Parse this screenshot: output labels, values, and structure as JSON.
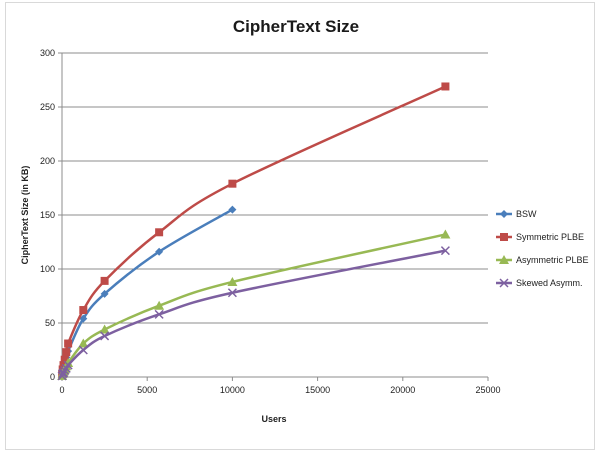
{
  "chart_data": {
    "type": "line",
    "title": "CipherText Size",
    "xlabel": "Users",
    "ylabel": "CipherText Size (in KB)",
    "xlim": [
      0,
      25000
    ],
    "ylim": [
      0,
      300
    ],
    "xticks": [
      0,
      5000,
      10000,
      15000,
      20000,
      25000
    ],
    "yticks": [
      0,
      50,
      100,
      150,
      200,
      250,
      300
    ],
    "grid": "horizontal",
    "legend_position": "right",
    "series": [
      {
        "name": "BSW",
        "color": "#4a7ebb",
        "marker": "diamond",
        "x": [
          10,
          40,
          90,
          160,
          250,
          360,
          1250,
          2500,
          5700,
          10000
        ],
        "y": [
          2,
          5,
          8,
          13,
          18,
          24,
          54,
          77,
          116,
          155
        ]
      },
      {
        "name": "Symmetric PLBE",
        "color": "#be4b48",
        "marker": "square",
        "x": [
          10,
          40,
          90,
          160,
          250,
          360,
          1250,
          2500,
          5700,
          10000,
          22500
        ],
        "y": [
          3,
          7,
          11,
          16,
          23,
          31,
          62,
          89,
          134,
          179,
          269
        ]
      },
      {
        "name": "Asymmetric PLBE",
        "color": "#98b954",
        "marker": "triangle",
        "x": [
          10,
          40,
          90,
          160,
          250,
          360,
          1250,
          2500,
          5700,
          10000,
          22500
        ],
        "y": [
          1,
          3,
          5,
          7,
          10,
          13,
          31,
          44,
          66,
          88,
          132
        ]
      },
      {
        "name": "Skewed Asymm.",
        "color": "#7d60a0",
        "marker": "x",
        "x": [
          10,
          40,
          90,
          160,
          250,
          360,
          1250,
          2500,
          5700,
          10000,
          22500
        ],
        "y": [
          1,
          3,
          4,
          6,
          8,
          11,
          25,
          38,
          58,
          78,
          117
        ]
      }
    ]
  }
}
